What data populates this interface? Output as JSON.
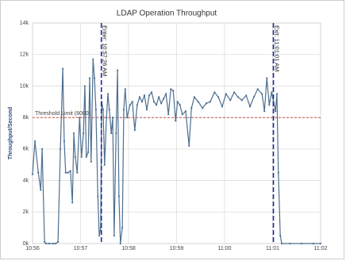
{
  "chart_data": {
    "type": "line",
    "title": "LDAP Operation Throughput",
    "y_label": "Throughput/Second",
    "color": "#4d6f8f",
    "grid": true,
    "x": [
      656.0,
      656.05,
      656.12,
      656.17,
      656.2,
      656.25,
      656.28,
      656.35,
      656.43,
      656.48,
      656.53,
      656.58,
      656.63,
      656.66,
      656.69,
      656.74,
      656.79,
      656.83,
      656.86,
      656.89,
      656.93,
      656.98,
      657.02,
      657.06,
      657.09,
      657.12,
      657.16,
      657.19,
      657.22,
      657.26,
      657.29,
      657.32,
      657.36,
      657.39,
      657.42,
      657.44,
      657.47,
      657.5,
      657.54,
      657.57,
      657.6,
      657.64,
      657.67,
      657.7,
      657.74,
      657.77,
      657.8,
      657.83,
      657.87,
      657.9,
      657.93,
      657.97,
      658.03,
      658.08,
      658.13,
      658.18,
      658.23,
      658.28,
      658.33,
      658.38,
      658.43,
      658.48,
      658.53,
      658.58,
      658.63,
      658.68,
      658.73,
      658.78,
      658.83,
      658.88,
      658.93,
      658.98,
      659.02,
      659.07,
      659.12,
      659.19,
      659.26,
      659.31,
      659.37,
      659.45,
      659.54,
      659.62,
      659.7,
      659.79,
      659.87,
      659.95,
      660.03,
      660.12,
      660.2,
      660.28,
      660.36,
      660.45,
      660.53,
      660.61,
      660.69,
      660.78,
      660.83,
      660.88,
      660.93,
      660.98,
      661.02,
      661.06,
      661.09,
      661.12,
      661.16,
      661.19,
      661.36,
      661.6,
      661.85,
      662.0
    ],
    "values": [
      4400,
      6500,
      4500,
      3400,
      6000,
      100,
      0,
      0,
      0,
      0,
      100,
      6000,
      11100,
      6500,
      4500,
      4500,
      4600,
      2600,
      7000,
      5500,
      4500,
      8000,
      5500,
      7000,
      10000,
      5500,
      5800,
      10500,
      5200,
      11700,
      10500,
      8500,
      3000,
      500,
      1000,
      9000,
      8500,
      5000,
      8000,
      9500,
      8500,
      7000,
      8000,
      500,
      7000,
      11000,
      3000,
      0,
      1000,
      8500,
      9800,
      8000,
      8800,
      9000,
      7200,
      8800,
      9300,
      9000,
      9400,
      8500,
      9400,
      9600,
      9000,
      8800,
      9300,
      8900,
      9200,
      9500,
      8200,
      9800,
      9700,
      7800,
      9000,
      8800,
      8200,
      8400,
      6200,
      8600,
      9300,
      9000,
      8600,
      8900,
      9000,
      9600,
      9300,
      8700,
      9500,
      9100,
      9600,
      9300,
      9100,
      9400,
      8700,
      9300,
      9800,
      9500,
      8400,
      10500,
      8800,
      9600,
      9000,
      8400,
      9500,
      4500,
      500,
      0,
      0,
      0,
      0,
      0
    ],
    "xlim": [
      656,
      662
    ],
    "xticks": [
      {
        "value": 656,
        "label": "10:56"
      },
      {
        "value": 657,
        "label": "10:57"
      },
      {
        "value": 658,
        "label": "10:58"
      },
      {
        "value": 659,
        "label": "10:59"
      },
      {
        "value": 660,
        "label": "11:00"
      },
      {
        "value": 661,
        "label": "11:01"
      },
      {
        "value": 662,
        "label": "11:02"
      }
    ],
    "ylim": [
      0,
      14000
    ],
    "yticks": [
      {
        "value": 0,
        "label": "0k"
      },
      {
        "value": 2000,
        "label": "2k"
      },
      {
        "value": 4000,
        "label": "4k"
      },
      {
        "value": 6000,
        "label": "6k"
      },
      {
        "value": 8000,
        "label": "8k"
      },
      {
        "value": 10000,
        "label": "10k"
      },
      {
        "value": 12000,
        "label": "12k"
      },
      {
        "value": 14000,
        "label": "14k"
      }
    ],
    "threshold": {
      "value": 8000,
      "label": "Threshold Limit (8000)",
      "color": "#c0392b"
    },
    "markers": [
      {
        "x": 657.4333,
        "label": "Enter: 10:57:26 AM",
        "color": "#1a2a9c"
      },
      {
        "x": 661.0167,
        "label": "Exit: 11:01:01 AM",
        "color": "#1a2a9c"
      }
    ]
  }
}
